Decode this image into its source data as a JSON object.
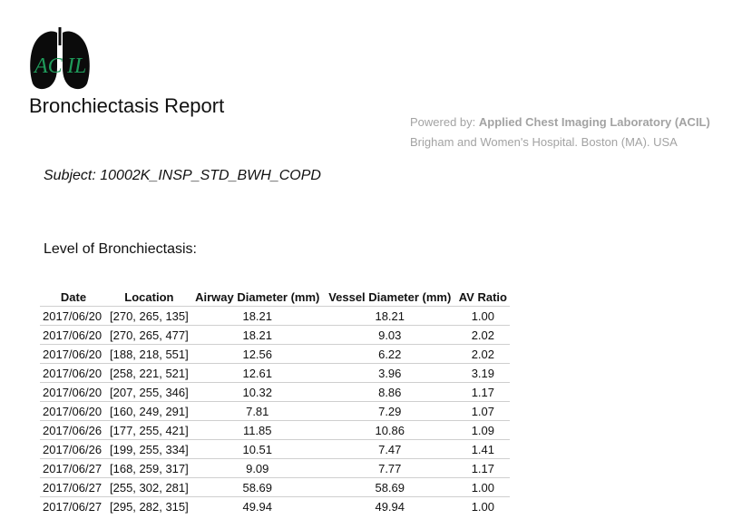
{
  "header": {
    "logo_text": "AC IL",
    "title": "Bronchiectasis Report",
    "powered_prefix": "Powered by: ",
    "powered_org": "Applied Chest Imaging Laboratory (ACIL)",
    "institution": "Brigham and Women's Hospital. Boston (MA). USA"
  },
  "subject": "Subject: 10002K_INSP_STD_BWH_COPD",
  "level_heading": "Level of Bronchiectasis:",
  "table": {
    "columns": [
      "Date",
      "Location",
      "Airway Diameter (mm)",
      "Vessel Diameter (mm)",
      "AV Ratio"
    ],
    "rows": [
      [
        "2017/06/20",
        "[270, 265, 135]",
        "18.21",
        "18.21",
        "1.00"
      ],
      [
        "2017/06/20",
        "[270, 265, 477]",
        "18.21",
        "9.03",
        "2.02"
      ],
      [
        "2017/06/20",
        "[188, 218, 551]",
        "12.56",
        "6.22",
        "2.02"
      ],
      [
        "2017/06/20",
        "[258, 221, 521]",
        "12.61",
        "3.96",
        "3.19"
      ],
      [
        "2017/06/20",
        "[207, 255, 346]",
        "10.32",
        "8.86",
        "1.17"
      ],
      [
        "2017/06/20",
        "[160, 249, 291]",
        "7.81",
        "7.29",
        "1.07"
      ],
      [
        "2017/06/26",
        "[177, 255, 421]",
        "11.85",
        "10.86",
        "1.09"
      ],
      [
        "2017/06/26",
        "[199, 255, 334]",
        "10.51",
        "7.47",
        "1.41"
      ],
      [
        "2017/06/27",
        "[168, 259, 317]",
        "9.09",
        "7.77",
        "1.17"
      ],
      [
        "2017/06/27",
        "[255, 302, 281]",
        "58.69",
        "58.69",
        "1.00"
      ],
      [
        "2017/06/27",
        "[295, 282, 315]",
        "49.94",
        "49.94",
        "1.00"
      ]
    ]
  },
  "colors": {
    "logo_lungs": "#0b0b0b",
    "logo_text": "#1f9a5a",
    "muted_text": "#a3a3a3",
    "row_divider": "#cfcfcf"
  }
}
